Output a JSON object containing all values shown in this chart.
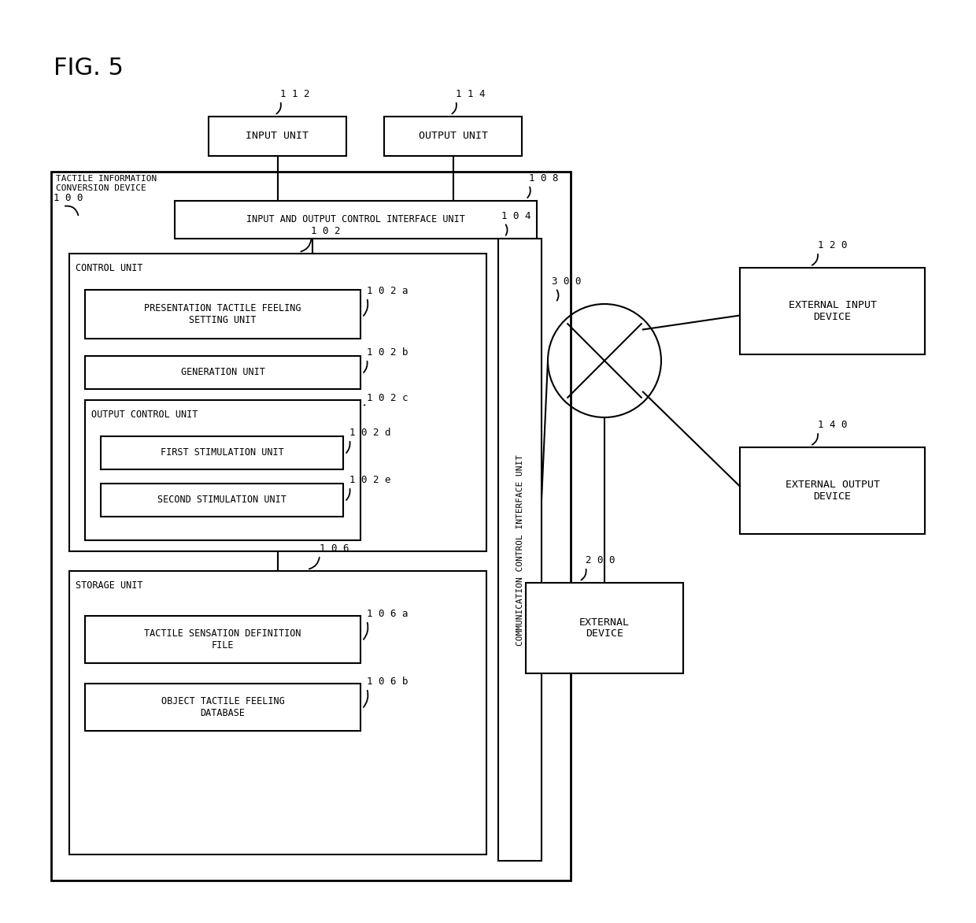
{
  "fig_label": "FIG. 5",
  "bg_color": "#ffffff",
  "line_color": "#000000",
  "boxes": {
    "input_unit": {
      "label": "INPUT UNIT",
      "ref": "1 1 2"
    },
    "output_unit": {
      "label": "OUTPUT UNIT",
      "ref": "1 1 4"
    },
    "io_control": {
      "label": "INPUT AND OUTPUT CONTROL INTERFACE UNIT",
      "ref": "1 0 8"
    },
    "main_device": {
      "label": "TACTILE INFORMATION\nCONVERSION DEVICE",
      "ref": "1 0 0"
    },
    "control_unit": {
      "label": "CONTROL UNIT",
      "ref": "1 0 2"
    },
    "pres_tactile": {
      "label": "PRESENTATION TACTILE FEELING\nSETTING UNIT",
      "ref": "1 0 2 a"
    },
    "generation": {
      "label": "GENERATION UNIT",
      "ref": "1 0 2 b"
    },
    "output_ctrl": {
      "label": "OUTPUT CONTROL UNIT",
      "ref": "1 0 2 c"
    },
    "first_stim": {
      "label": "FIRST STIMULATION UNIT",
      "ref": "1 0 2 d"
    },
    "second_stim": {
      "label": "SECOND STIMULATION UNIT",
      "ref": "1 0 2 e"
    },
    "storage": {
      "label": "STORAGE UNIT",
      "ref": "1 0 6"
    },
    "tactile_sense": {
      "label": "TACTILE SENSATION DEFINITION\nFILE",
      "ref": "1 0 6 a"
    },
    "object_tactile": {
      "label": "OBJECT TACTILE FEELING\nDATABASE",
      "ref": "1 0 6 b"
    },
    "comm_ctrl": {
      "label": "COMMUNICATION CONTROL INTERFACE UNIT",
      "ref": "1 0 4"
    },
    "ext_input": {
      "label": "EXTERNAL INPUT\nDEVICE",
      "ref": "1 2 0"
    },
    "ext_output": {
      "label": "EXTERNAL OUTPUT\nDEVICE",
      "ref": "1 4 0"
    },
    "ext_device": {
      "label": "EXTERNAL\nDEVICE",
      "ref": "2 0 0"
    },
    "network": {
      "label": "",
      "ref": "3 0 0"
    }
  }
}
